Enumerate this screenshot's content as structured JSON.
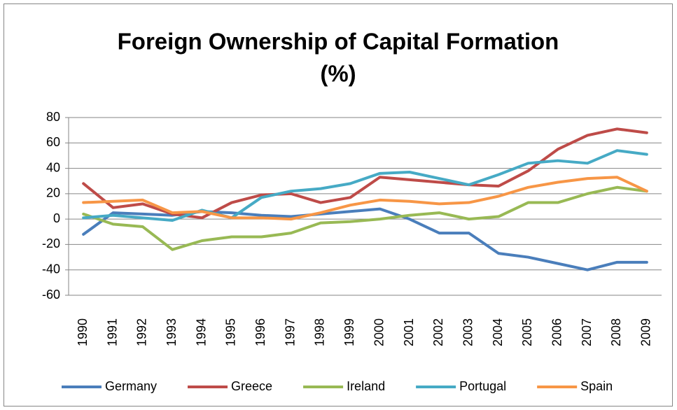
{
  "chart_data": {
    "type": "line",
    "title": [
      "Foreign Ownership of Capital Formation",
      "(%)"
    ],
    "categories": [
      "1990",
      "1991",
      "1992",
      "1993",
      "1994",
      "1995",
      "1996",
      "1997",
      "1998",
      "1999",
      "2000",
      "2001",
      "2002",
      "2003",
      "2004",
      "2005",
      "2006",
      "2007",
      "2008",
      "2009"
    ],
    "series": [
      {
        "name": "Germany",
        "color": "#4a7ebb",
        "values": [
          -12,
          5,
          4,
          3,
          6,
          5,
          3,
          2,
          4,
          6,
          8,
          0,
          -11,
          -11,
          -27,
          -30,
          -35,
          -40,
          -34,
          -34
        ]
      },
      {
        "name": "Greece",
        "color": "#be4b48",
        "values": [
          28,
          9,
          12,
          4,
          1,
          13,
          19,
          20,
          13,
          17,
          33,
          31,
          29,
          27,
          26,
          38,
          55,
          66,
          71,
          68
        ]
      },
      {
        "name": "Ireland",
        "color": "#98b954",
        "values": [
          4,
          -4,
          -6,
          -24,
          -17,
          -14,
          -14,
          -11,
          -3,
          -2,
          0,
          3,
          5,
          0,
          2,
          13,
          13,
          20,
          25,
          22
        ]
      },
      {
        "name": "Portugal",
        "color": "#46aac5",
        "values": [
          1,
          3,
          1,
          -1,
          7,
          1,
          17,
          22,
          24,
          28,
          36,
          37,
          32,
          27,
          35,
          44,
          46,
          44,
          54,
          51
        ]
      },
      {
        "name": "Spain",
        "color": "#f79646",
        "values": [
          13,
          14,
          15,
          5,
          6,
          1,
          1,
          0,
          5,
          11,
          15,
          14,
          12,
          13,
          18,
          25,
          29,
          32,
          33,
          22
        ]
      }
    ],
    "ylim": [
      -60,
      80
    ],
    "yticks": [
      -60,
      -40,
      -20,
      0,
      20,
      40,
      60,
      80
    ],
    "grid": true,
    "legend": "bottom"
  }
}
